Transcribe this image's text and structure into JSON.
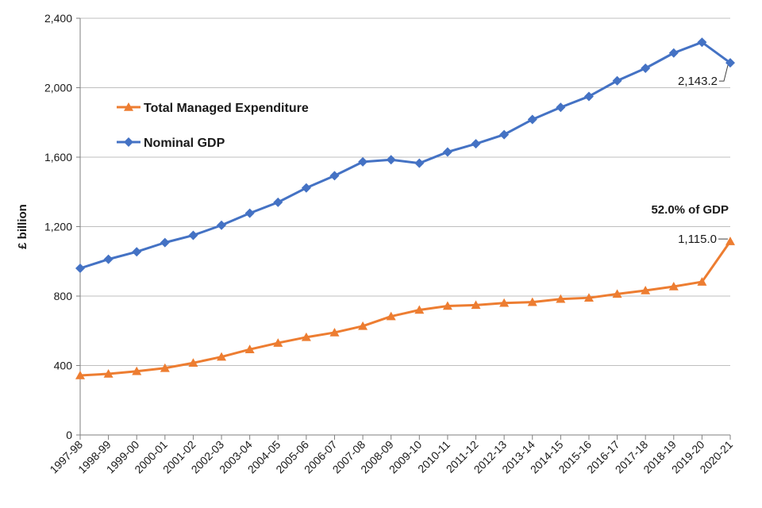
{
  "chart_data": {
    "type": "line",
    "ylabel": "£ billion",
    "ylim": [
      0,
      2400
    ],
    "yticks": [
      0,
      400,
      800,
      1200,
      1600,
      2000,
      2400
    ],
    "ytick_labels": [
      "0",
      "400",
      "800",
      "1,200",
      "1,600",
      "2,000",
      "2,400"
    ],
    "grid": "horizontal",
    "legend_position": "left-upper",
    "categories": [
      "1997-98",
      "1998-99",
      "1999-00",
      "2000-01",
      "2001-02",
      "2002-03",
      "2003-04",
      "2004-05",
      "2005-06",
      "2006-07",
      "2007-08",
      "2008-09",
      "2009-10",
      "2010-11",
      "2011-12",
      "2012-13",
      "2013-14",
      "2014-15",
      "2015-16",
      "2016-17",
      "2017-18",
      "2018-19",
      "2019-20",
      "2020-21"
    ],
    "series": [
      {
        "name": "Total Managed Expenditure",
        "color": "#ED7D31",
        "marker": "triangle",
        "values": [
          343,
          352,
          367,
          385,
          415,
          450,
          493,
          530,
          563,
          590,
          627,
          683,
          720,
          743,
          748,
          760,
          765,
          783,
          790,
          812,
          832,
          855,
          882,
          1115.0
        ]
      },
      {
        "name": "Nominal GDP",
        "color": "#4472C4",
        "marker": "diamond",
        "values": [
          960,
          1012,
          1055,
          1108,
          1150,
          1208,
          1277,
          1340,
          1423,
          1493,
          1573,
          1585,
          1565,
          1630,
          1677,
          1730,
          1817,
          1887,
          1950,
          2040,
          2112,
          2200,
          2262,
          2143.2
        ]
      }
    ],
    "annotations": [
      {
        "text": "2,143.2",
        "series": "Nominal GDP",
        "category": "2020-21"
      },
      {
        "text": "52.0% of GDP",
        "bold": true
      },
      {
        "text": "1,115.0",
        "series": "Total Managed Expenditure",
        "category": "2020-21"
      }
    ]
  }
}
